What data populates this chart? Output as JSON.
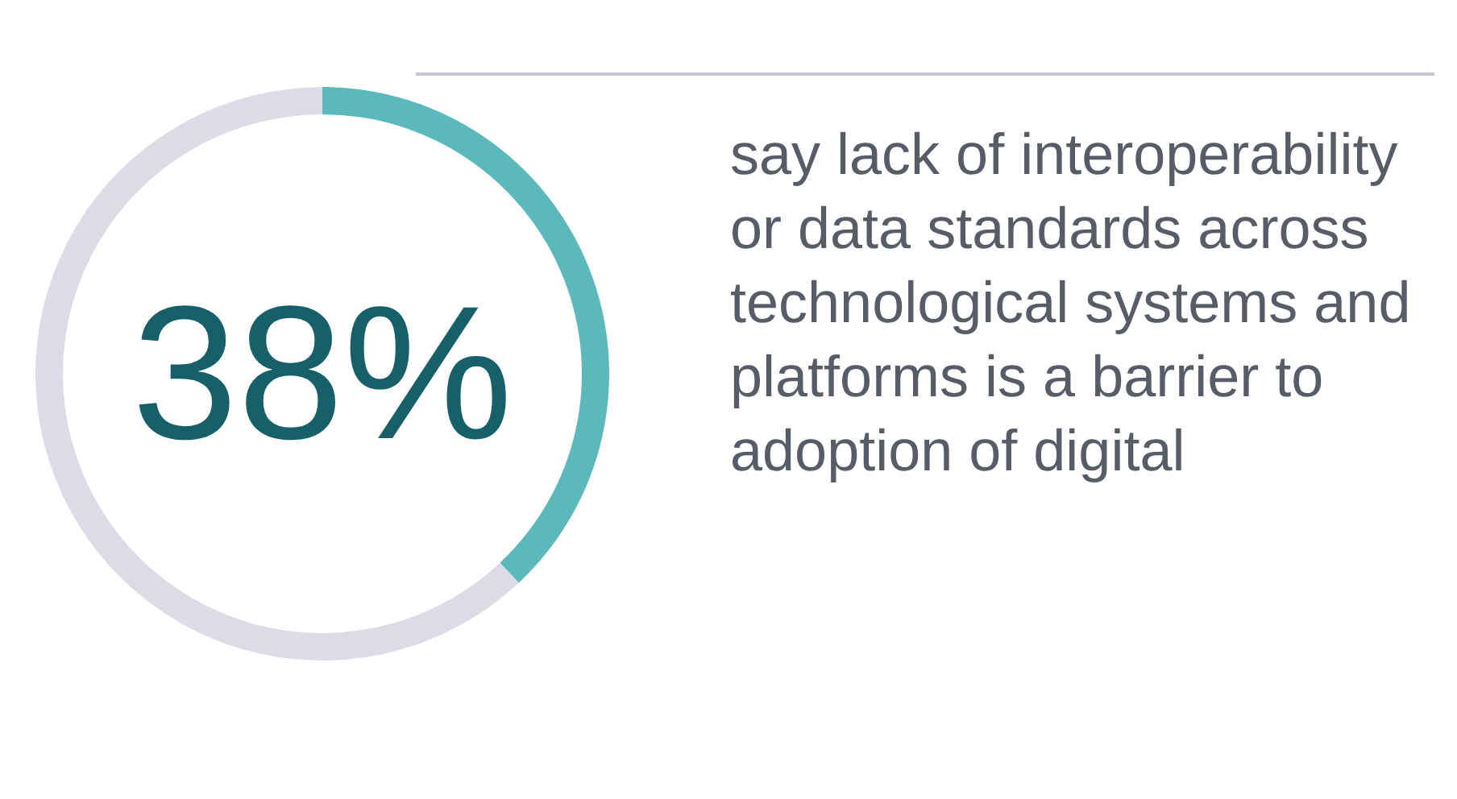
{
  "chart_data": {
    "type": "donut",
    "categories": [
      null,
      null
    ],
    "values": [
      38,
      62
    ],
    "colors": [
      "#5bb9bc",
      "#dcdce6"
    ],
    "value_labels": [
      "38%",
      null
    ],
    "annotations": [
      "say lack of interoperability or data standards across technological systems and platforms is a barrier to adoption of digital"
    ]
  }
}
